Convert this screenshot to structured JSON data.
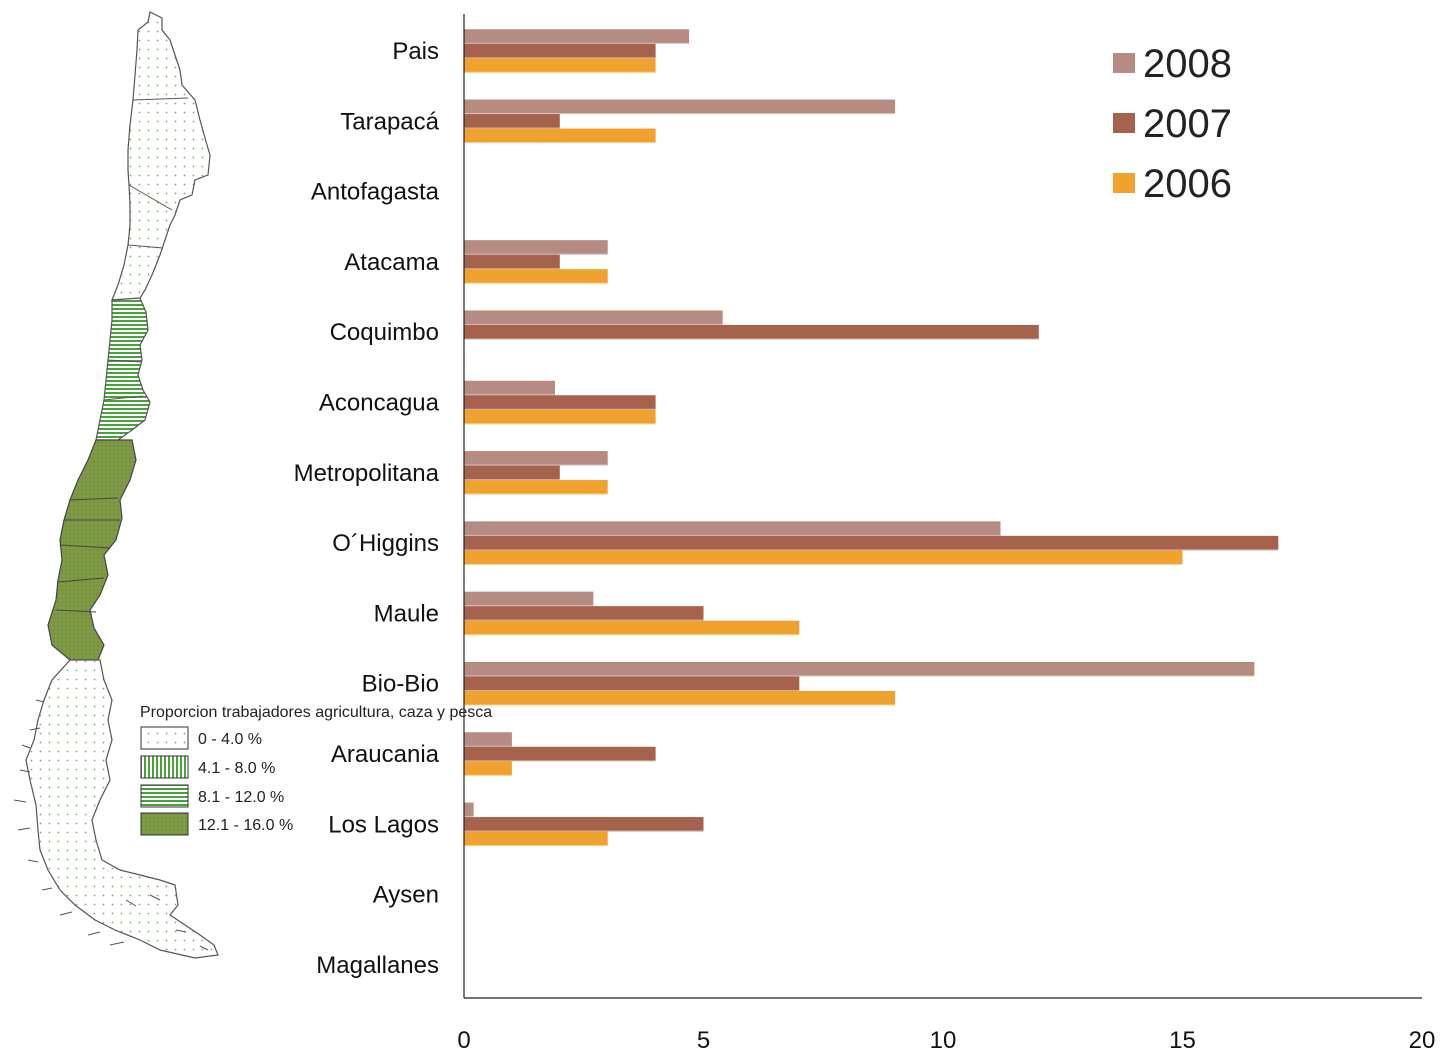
{
  "chart_data": {
    "type": "bar",
    "orientation": "horizontal",
    "categories": [
      "Pais",
      "Tarapacá",
      "Antofagasta",
      "Atacama",
      "Coquimbo",
      "Aconcagua",
      "Metropolitana",
      "O´Higgins",
      "Maule",
      "Bio-Bio",
      "Araucania",
      "Los Lagos",
      "Aysen",
      "Magallanes"
    ],
    "series": [
      {
        "name": "2008",
        "color": "#b58b82",
        "values": [
          4.7,
          9,
          0,
          3,
          5.4,
          1.9,
          3,
          11.2,
          2.7,
          16.5,
          1,
          0.2,
          0,
          0
        ]
      },
      {
        "name": "2007",
        "color": "#a5634e",
        "values": [
          4,
          2,
          0,
          2,
          12,
          4,
          2,
          17,
          5,
          7,
          4,
          5,
          0,
          0
        ]
      },
      {
        "name": "2006",
        "color": "#f0a22e",
        "values": [
          4,
          4,
          0,
          3,
          0,
          4,
          3,
          15,
          7,
          9,
          1,
          3,
          0,
          0
        ]
      }
    ],
    "xlim": [
      0,
      20
    ],
    "xticks": [
      0,
      5,
      10,
      15,
      20
    ],
    "legend_position": "top-right",
    "grid": false,
    "xlabel": "",
    "ylabel": "",
    "title": ""
  },
  "map_legend": {
    "title": "Proporcion trabajadores agricultura, caza y pesca",
    "items": [
      {
        "label": "0 - 4.0 %",
        "pattern": "dots"
      },
      {
        "label": "4.1 - 8.0 %",
        "pattern": "vlines"
      },
      {
        "label": "8.1 - 12.0 %",
        "pattern": "hlines"
      },
      {
        "label": "12.1 - 16.0 %",
        "pattern": "solid"
      }
    ]
  },
  "colors": {
    "map_green_light": "#5aa845",
    "map_green_dark": "#7f9a45"
  }
}
